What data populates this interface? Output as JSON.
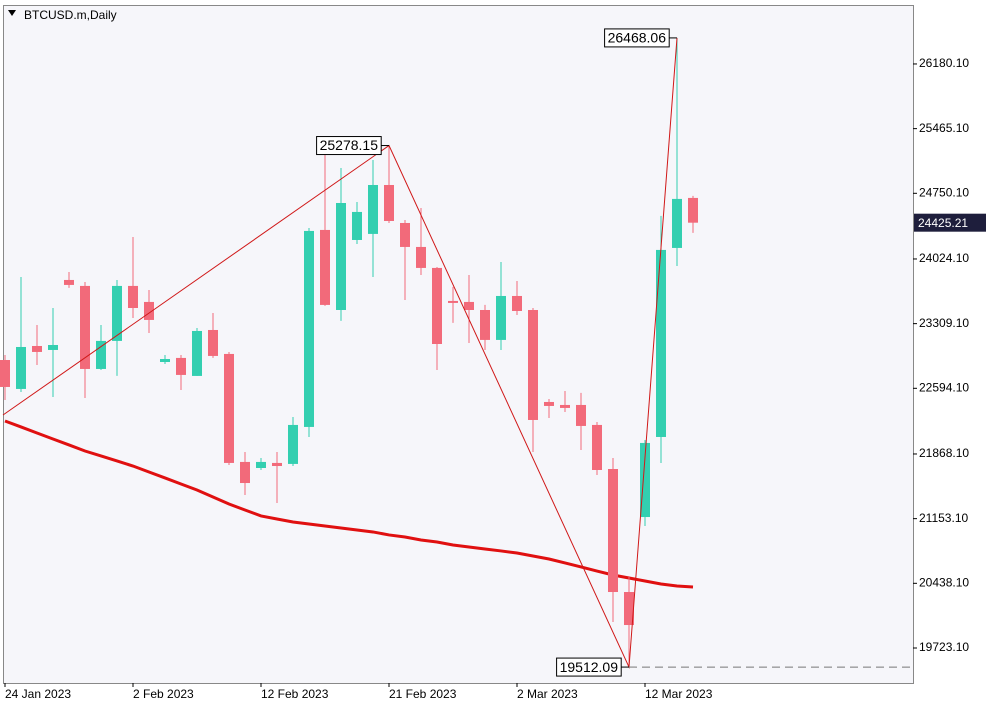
{
  "chart_data": {
    "type": "candlestick",
    "title": "BTCUSD.m,Daily",
    "categories": [
      "24 Jan 2023",
      null,
      null,
      null,
      null,
      null,
      null,
      null,
      "2 Feb 2023",
      null,
      null,
      null,
      null,
      null,
      null,
      null,
      "12 Feb 2023",
      null,
      null,
      null,
      null,
      null,
      null,
      null,
      "21 Feb 2023",
      null,
      null,
      null,
      null,
      null,
      null,
      null,
      "2 Mar 2023",
      null,
      null,
      null,
      null,
      null,
      null,
      null,
      "12 Mar 2023",
      null,
      null,
      null
    ],
    "open": [
      22907,
      22587,
      23062,
      23018,
      23792,
      23726,
      22808,
      23118,
      23726,
      23549,
      22885,
      22930,
      22731,
      23239,
      22974,
      21780,
      21713,
      21769,
      21758,
      22167,
      24345,
      23460,
      24234,
      24301,
      24842,
      24422,
      24157,
      23925,
      23560,
      23549,
      23460,
      23129,
      23615,
      23460,
      22443,
      22410,
      22410,
      22189,
      21702,
      20342,
      21171,
      22056,
      24146,
      24699
    ],
    "high": [
      22963,
      23825,
      23294,
      23482,
      23880,
      23770,
      23294,
      23792,
      24267,
      23681,
      22963,
      22963,
      23261,
      23427,
      22996,
      21890,
      21824,
      21890,
      22277,
      24367,
      25174,
      25030,
      24654,
      25119,
      25278.15,
      24455,
      24588,
      23936,
      23715,
      23847,
      23516,
      23991,
      23781,
      23482,
      22476,
      22565,
      22543,
      22222,
      21824,
      20508,
      22023,
      24500,
      26468.06,
      24721
    ],
    "low": [
      22465,
      22554,
      22852,
      22498,
      23704,
      22487,
      22797,
      22731,
      23372,
      23206,
      22863,
      22576,
      22731,
      22930,
      21746,
      21415,
      21691,
      21326,
      21735,
      22056,
      23505,
      23339,
      24190,
      23825,
      24422,
      23571,
      23847,
      22797,
      23317,
      23095,
      23018,
      23018,
      23405,
      21890,
      22266,
      22332,
      21912,
      21636,
      20010,
      19512.09,
      21072,
      21769,
      23947,
      24312
    ],
    "close": [
      22609,
      23051,
      22996,
      23073,
      23737,
      22808,
      23118,
      23726,
      23482,
      23350,
      22918,
      22742,
      23228,
      22952,
      21769,
      21547,
      21780,
      21735,
      22189,
      24334,
      23516,
      24643,
      24544,
      24842,
      24444,
      24157,
      23925,
      23084,
      23538,
      23460,
      23129,
      23615,
      23449,
      22244,
      22399,
      22377,
      22178,
      21691,
      20342,
      19977,
      21990,
      24124,
      24688,
      24425.21
    ],
    "up_color": "#33cfb0",
    "down_color": "#f26a7a",
    "moving_average": {
      "color": "#e01010",
      "values": [
        22233,
        22167,
        22100,
        22034,
        21968,
        21901,
        21846,
        21791,
        21735,
        21669,
        21603,
        21536,
        21470,
        21393,
        21315,
        21249,
        21183,
        21149,
        21116,
        21094,
        21072,
        21050,
        21028,
        21006,
        20973,
        20950,
        20917,
        20895,
        20862,
        20840,
        20818,
        20796,
        20773,
        20740,
        20707,
        20663,
        20619,
        20574,
        20530,
        20497,
        20464,
        20431,
        20409,
        20398
      ]
    },
    "zigzag": {
      "color": "#d01818",
      "x": [
        0,
        24,
        39,
        42
      ],
      "values": [
        22299,
        25278.15,
        19512.09,
        26468.06
      ]
    },
    "current_price": 24425.21,
    "ylim": [
      19336,
      26832
    ],
    "yticks": [
      {
        "value": 19723.1,
        "label": "19723.10"
      },
      {
        "value": 20438.1,
        "label": "20438.10"
      },
      {
        "value": 21153.1,
        "label": "21153.10"
      },
      {
        "value": 21868.1,
        "label": "21868.10"
      },
      {
        "value": 22594.1,
        "label": "22594.10"
      },
      {
        "value": 23309.1,
        "label": "23309.10"
      },
      {
        "value": 24024.1,
        "label": "24024.10"
      },
      {
        "value": 24750.1,
        "label": "24750.10"
      },
      {
        "value": 25465.1,
        "label": "25465.10"
      },
      {
        "value": 26180.1,
        "label": "26180.10"
      }
    ]
  }
}
